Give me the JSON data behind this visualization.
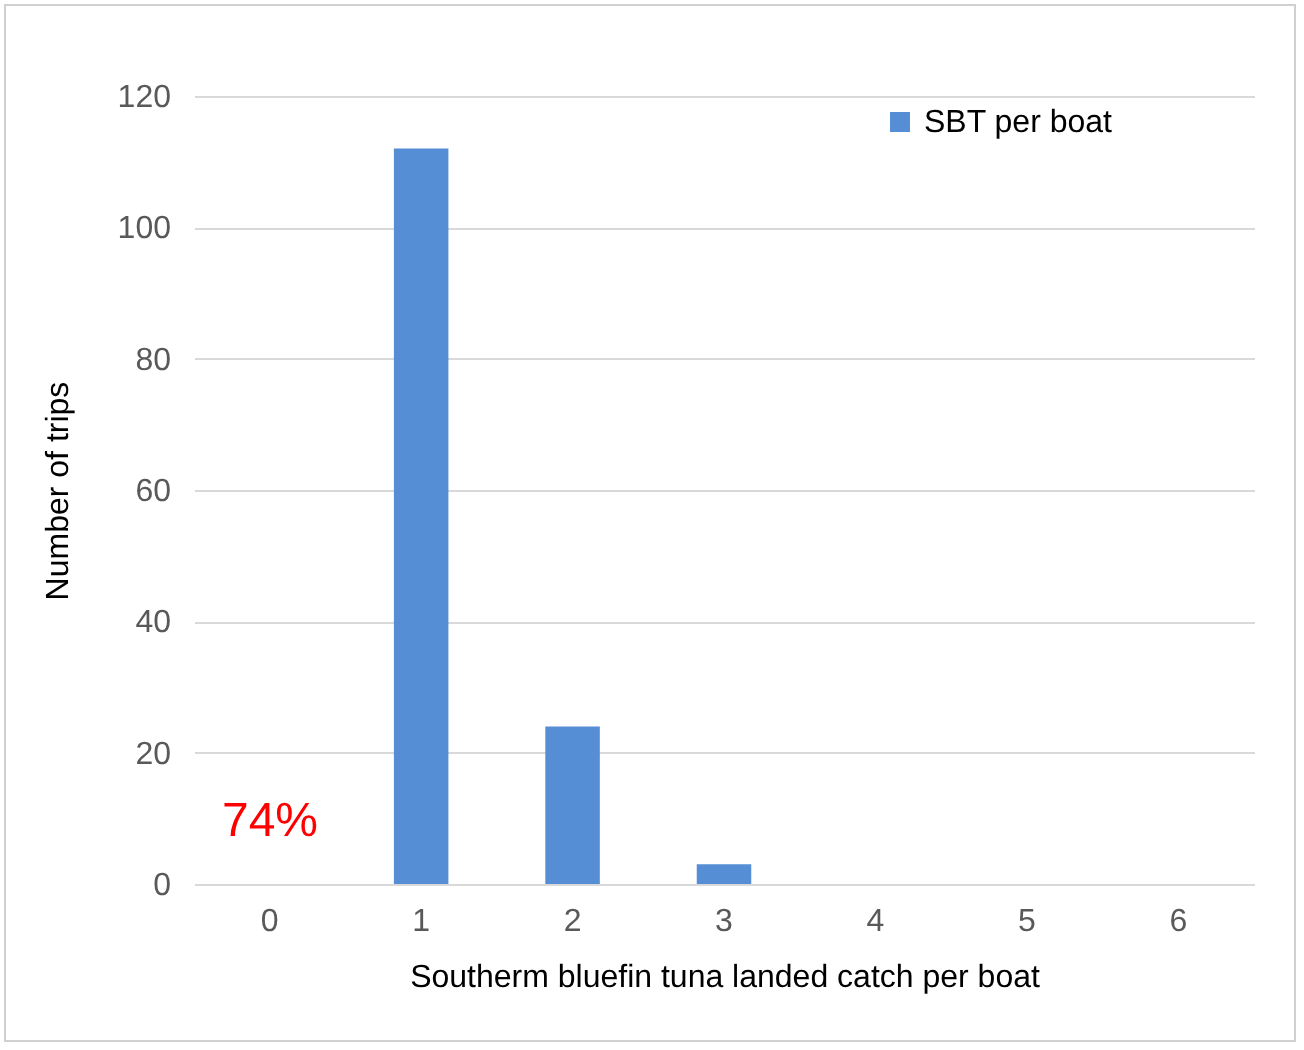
{
  "chart_data": {
    "type": "bar",
    "xlabel": "Southerm bluefin tuna landed catch per boat",
    "ylabel": "Number of trips",
    "categories": [
      "0",
      "1",
      "2",
      "3",
      "4",
      "5",
      "6"
    ],
    "series": [
      {
        "name": "SBT per boat",
        "color": "#558ed5",
        "values": [
          0,
          112,
          24,
          3,
          0,
          0,
          0
        ]
      }
    ],
    "ylim": [
      0,
      120
    ],
    "yticks": [
      0,
      20,
      40,
      60,
      80,
      100,
      120
    ],
    "grid": "y",
    "legend": "top right",
    "annotations": [
      "74%"
    ]
  }
}
